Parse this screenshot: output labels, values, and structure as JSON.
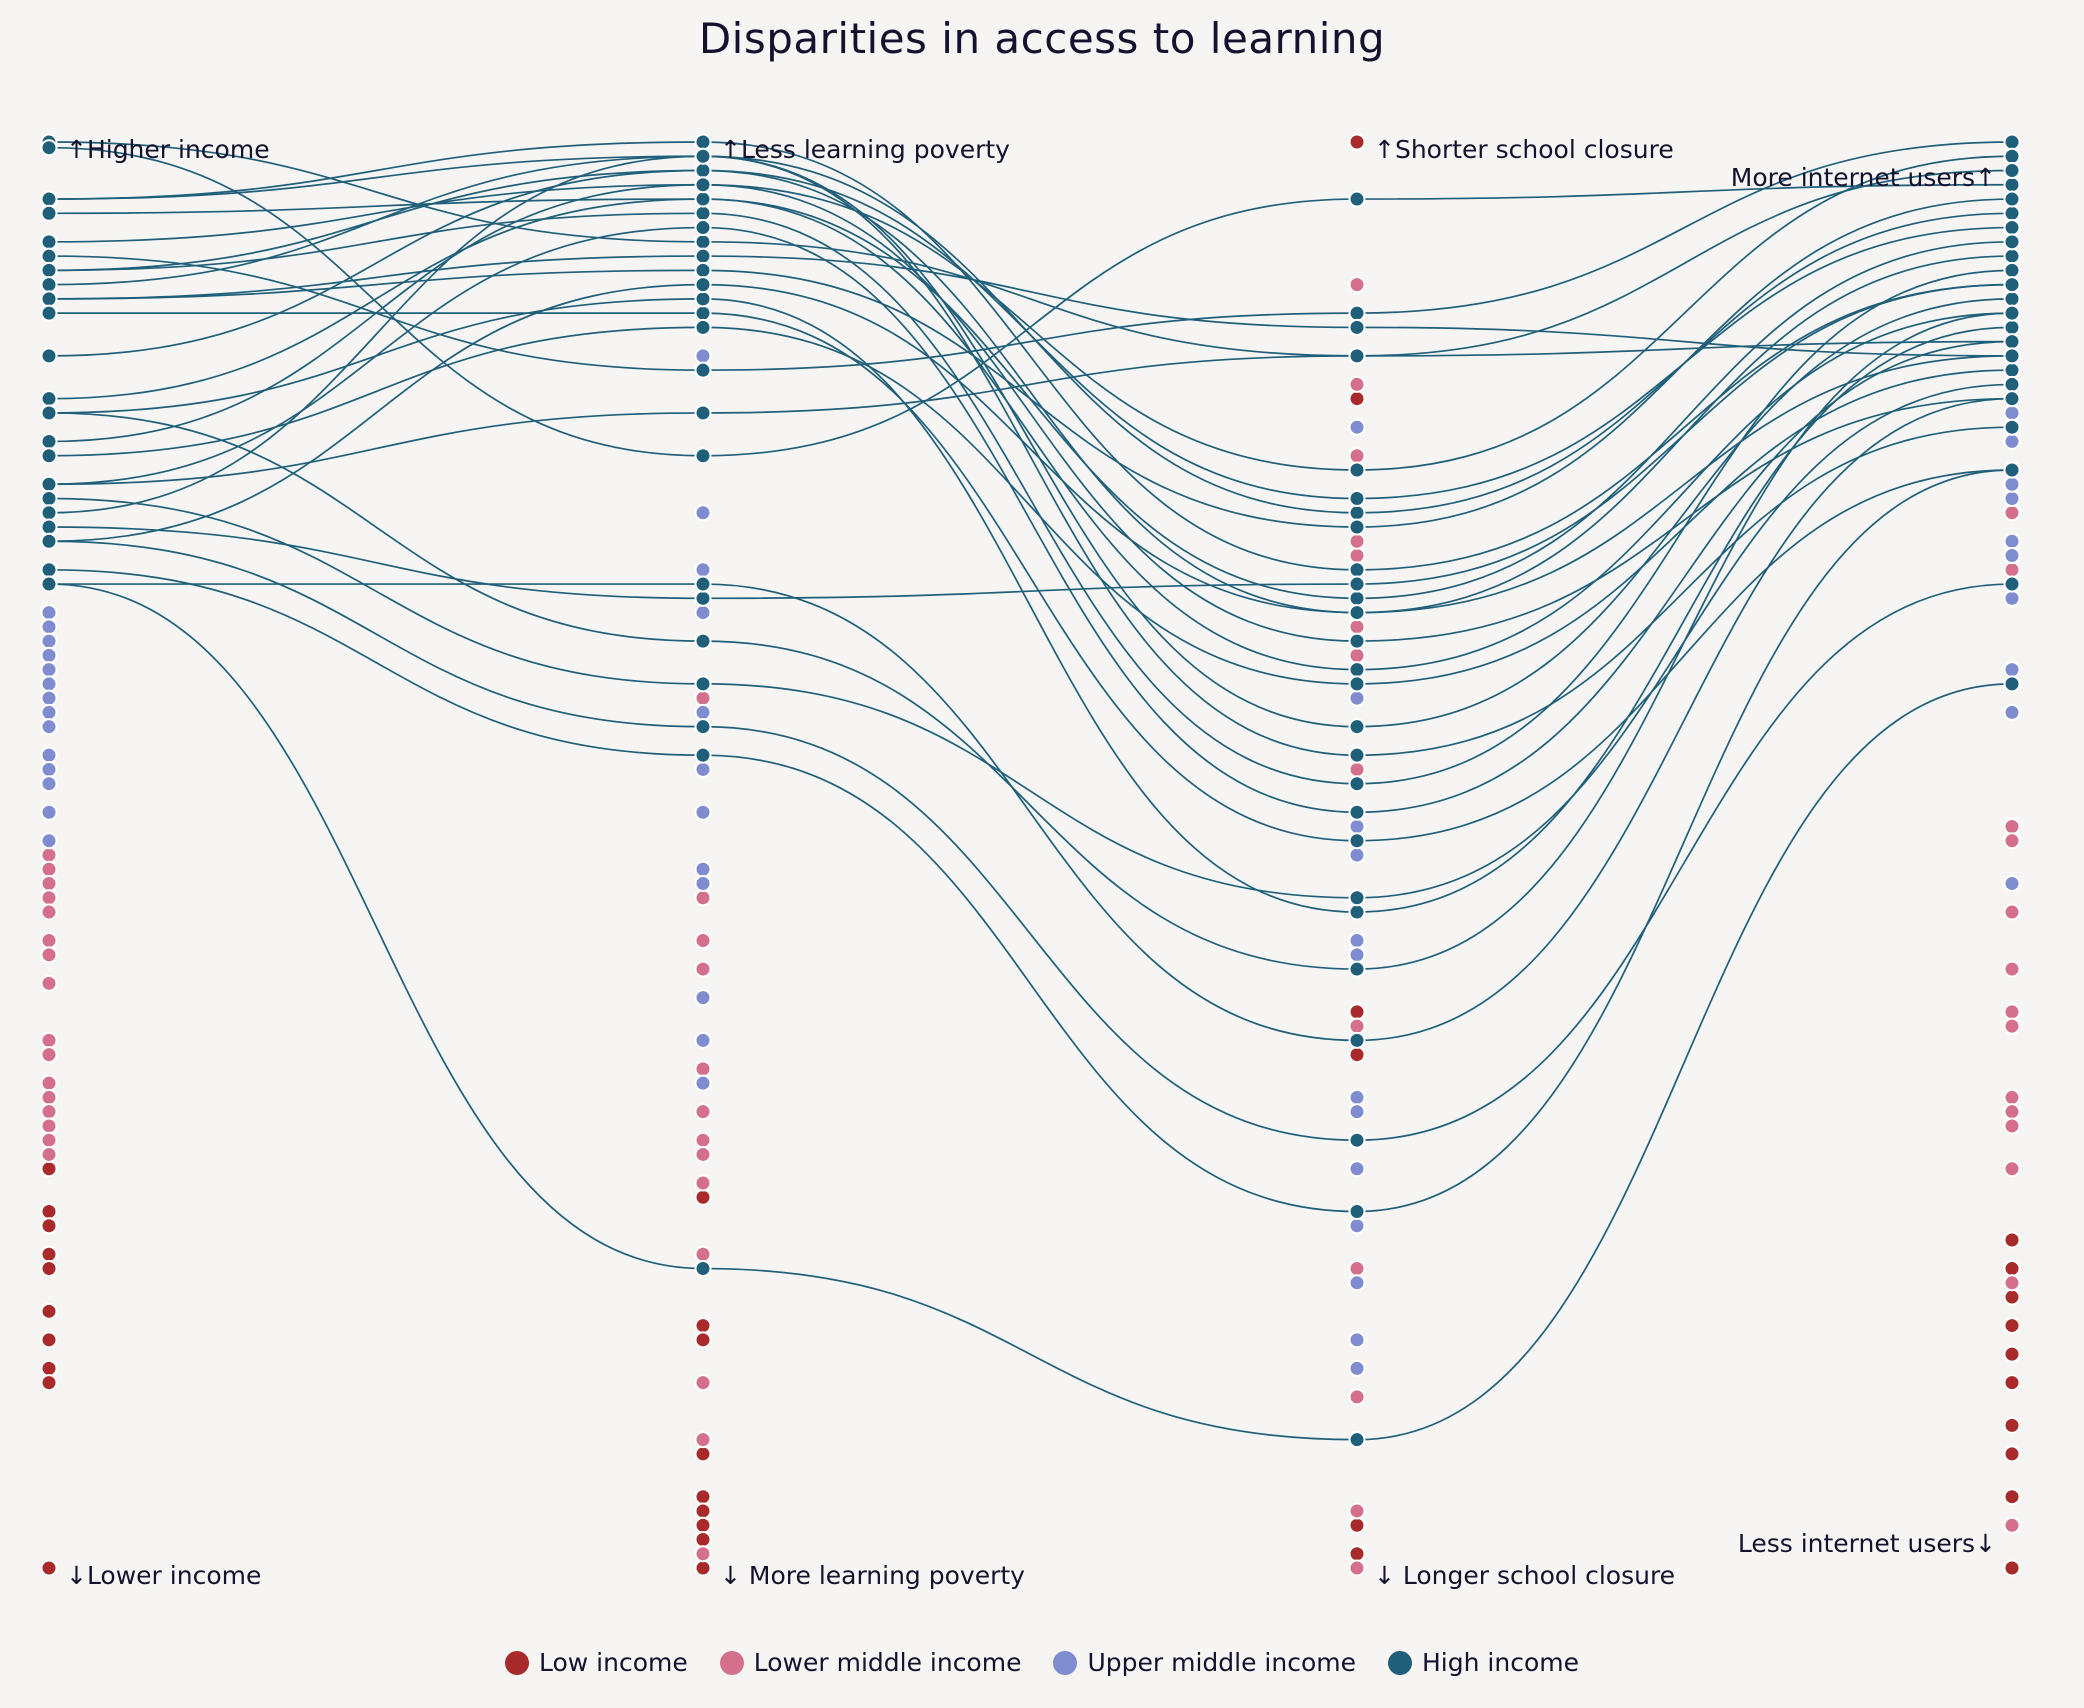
{
  "chart_data": {
    "type": "parallel-coordinates",
    "title": "Disparities in access to learning",
    "axes": [
      {
        "top_label": "↑Higher income",
        "bottom_label": "↓Lower income"
      },
      {
        "top_label": "↑Less learning poverty",
        "bottom_label": "↓ More learning poverty"
      },
      {
        "top_label": "↑Shorter school closure",
        "bottom_label": "↓ Longer school closure"
      },
      {
        "top_label": "More internet users↑",
        "bottom_label": "Less internet users↓"
      }
    ],
    "value_range": [
      0,
      100
    ],
    "legend_position": "bottom",
    "series": [
      {
        "name": "Low income",
        "color": "#a82a2a",
        "lines": false,
        "points": [
          [
            28,
            26,
            100,
            23
          ],
          [
            25,
            17,
            85,
            21
          ],
          [
            24,
            16,
            82,
            19
          ],
          [
            22,
            8,
            73,
            17
          ],
          [
            21,
            5,
            64,
            15
          ],
          [
            18,
            4,
            39,
            13
          ],
          [
            16,
            3,
            1,
            10
          ],
          [
            14,
            0,
            38,
            8
          ],
          [
            13,
            21,
            36,
            5
          ],
          [
            0,
            2,
            3,
            0
          ]
        ]
      },
      {
        "name": "Lower middle income",
        "color": "#d4708c",
        "lines": false,
        "points": [
          [
            50,
            84,
            90,
            84
          ],
          [
            49,
            74,
            83,
            74
          ],
          [
            48,
            61,
            78,
            70
          ],
          [
            47,
            47,
            71,
            60
          ],
          [
            46,
            44,
            69,
            52
          ],
          [
            44,
            42,
            66,
            51
          ],
          [
            43,
            35,
            64,
            46
          ],
          [
            41,
            34,
            38,
            42
          ],
          [
            37,
            32,
            28,
            39
          ],
          [
            36,
            30,
            21,
            38
          ],
          [
            34,
            29,
            14,
            33
          ],
          [
            33,
            27,
            12,
            32
          ],
          [
            32,
            22,
            4,
            31
          ],
          [
            31,
            13,
            0,
            28
          ],
          [
            30,
            9,
            56,
            20
          ],
          [
            29,
            1,
            72,
            3
          ]
        ]
      },
      {
        "name": "Upper middle income",
        "color": "#7f8ccf",
        "lines": false,
        "points": [
          [
            67,
            92,
            88,
            84
          ],
          [
            66,
            87,
            80,
            80
          ],
          [
            65,
            85,
            61,
            79
          ],
          [
            64,
            74,
            52,
            77
          ],
          [
            63,
            70,
            50,
            75
          ],
          [
            62,
            67,
            44,
            72
          ],
          [
            61,
            60,
            43,
            68
          ],
          [
            60,
            56,
            33,
            63
          ],
          [
            59,
            53,
            32,
            60
          ],
          [
            57,
            49,
            28,
            48
          ],
          [
            56,
            48,
            24,
            83
          ],
          [
            55,
            40,
            20,
            81
          ],
          [
            53,
            37,
            16,
            76
          ],
          [
            51,
            34,
            14,
            71
          ]
        ]
      },
      {
        "name": "High income",
        "color": "#1f5f7a",
        "lines": true,
        "points": [
          [
            100,
            93,
            85,
            86
          ],
          [
            99.6,
            78,
            96,
            97
          ],
          [
            96,
            99,
            74,
            95
          ],
          [
            96,
            100,
            70,
            90
          ],
          [
            95,
            96,
            63,
            88
          ],
          [
            93,
            97,
            65,
            82
          ],
          [
            92,
            84,
            88,
            100
          ],
          [
            91,
            98,
            67,
            92
          ],
          [
            91,
            95,
            55,
            91
          ],
          [
            90,
            99,
            59,
            89
          ],
          [
            89,
            92,
            87,
            85
          ],
          [
            89,
            91,
            73,
            96
          ],
          [
            88,
            88,
            51,
            77
          ],
          [
            85,
            98,
            75,
            94
          ],
          [
            82,
            96,
            68,
            93
          ],
          [
            81,
            89,
            46,
            87
          ],
          [
            81,
            65,
            42,
            88
          ],
          [
            79,
            97,
            77,
            99
          ],
          [
            78,
            87,
            62,
            84
          ],
          [
            76,
            94,
            53,
            86
          ],
          [
            76,
            81,
            85,
            98
          ],
          [
            75,
            62,
            47,
            83
          ],
          [
            74,
            99,
            57,
            80
          ],
          [
            73,
            68,
            69,
            90
          ],
          [
            72,
            59,
            30,
            69
          ],
          [
            72,
            90,
            67,
            85
          ],
          [
            70,
            57,
            25,
            77
          ],
          [
            69,
            69,
            37,
            82
          ],
          [
            69,
            21,
            9,
            62
          ]
        ]
      }
    ]
  }
}
